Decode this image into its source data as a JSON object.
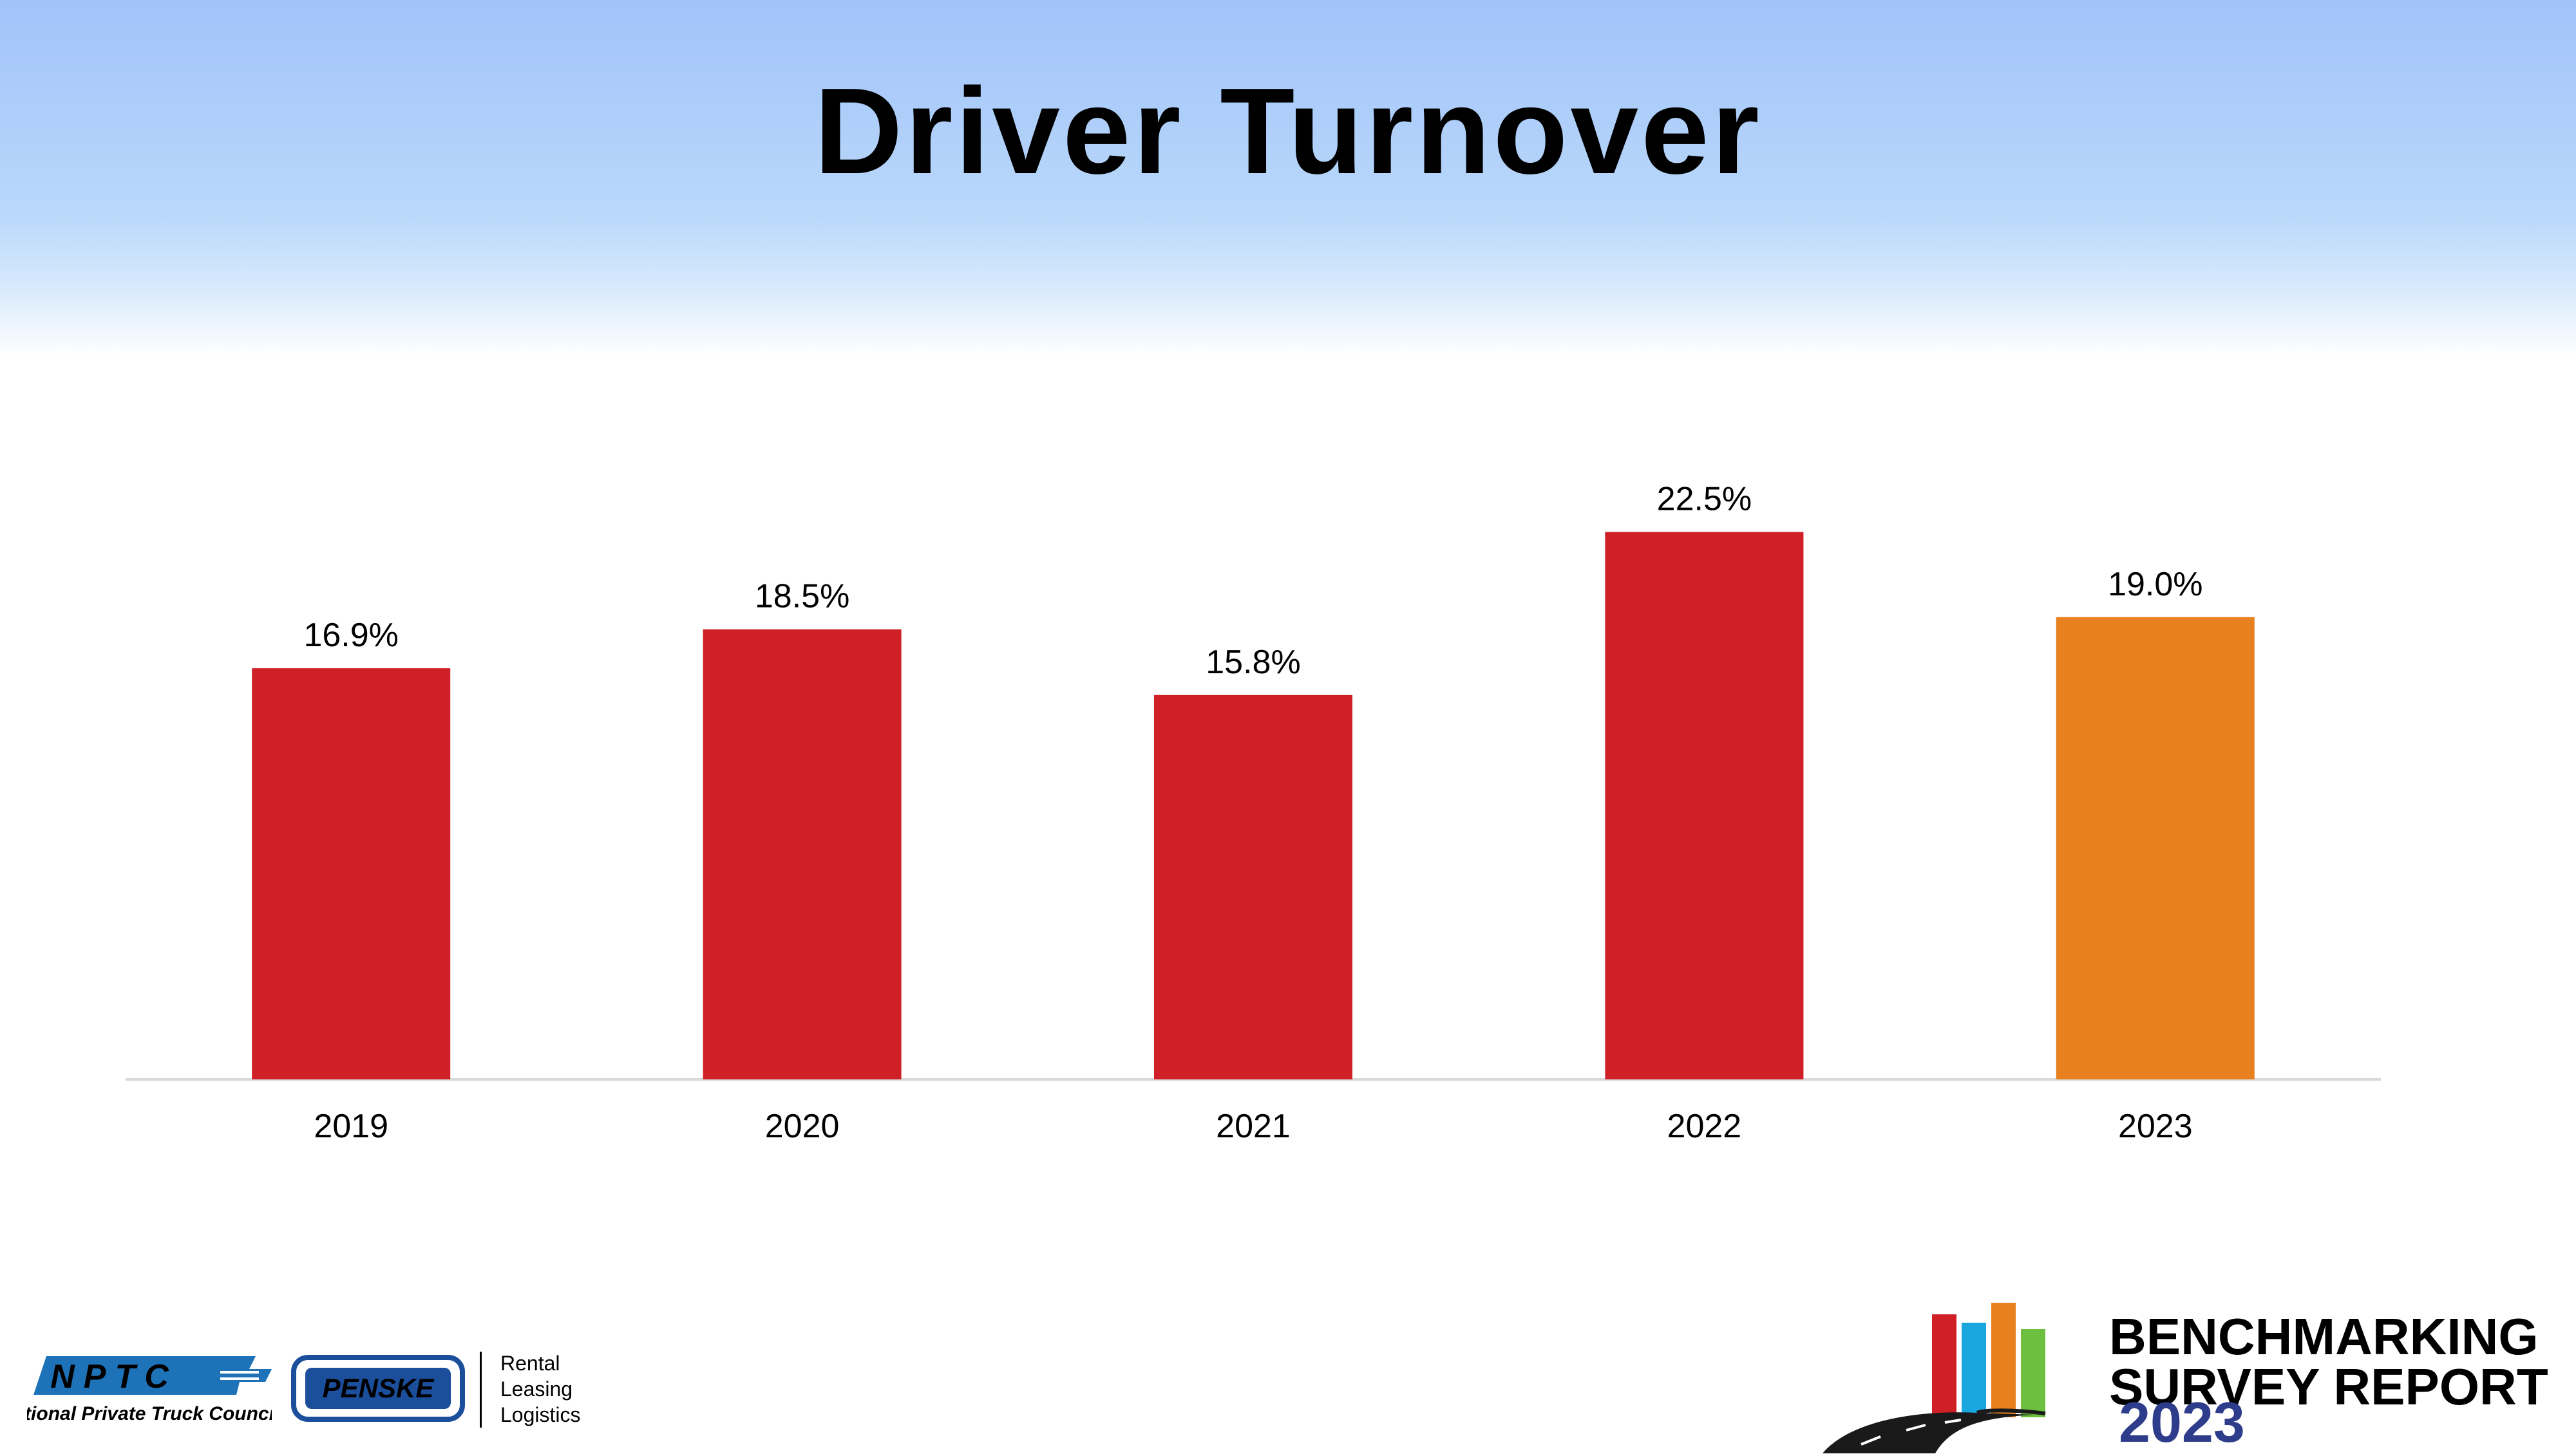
{
  "title": "Driver Turnover",
  "chart_data": {
    "type": "bar",
    "title": "Driver Turnover",
    "categories": [
      "2019",
      "2020",
      "2021",
      "2022",
      "2023"
    ],
    "values": [
      16.9,
      18.5,
      15.8,
      22.5,
      19.0
    ],
    "data_labels": [
      "16.9%",
      "18.5%",
      "15.8%",
      "22.5%",
      "19.0%"
    ],
    "colors": [
      "#cf1f27",
      "#cf1f27",
      "#cf1f27",
      "#cf1f27",
      "#e88020"
    ],
    "ylim": [
      0,
      25
    ],
    "grid": false,
    "legend": "none",
    "xlabel": "",
    "ylabel": ""
  },
  "footer": {
    "nptc": {
      "abbr": "NPTC",
      "name": "National Private Truck Council"
    },
    "penske": {
      "name": "PENSKE",
      "services": [
        "Rental",
        "Leasing",
        "Logistics"
      ]
    },
    "benchmark": {
      "line1": "BENCHMARKING",
      "line2": "SURVEY REPORT",
      "year": "2023"
    }
  },
  "colors": {
    "bar_red": "#cf1f27",
    "bar_orange": "#e88020",
    "nptc_blue": "#1d72b8",
    "penske_blue": "#1b4f9c",
    "year_blue": "#2e3c8c"
  }
}
